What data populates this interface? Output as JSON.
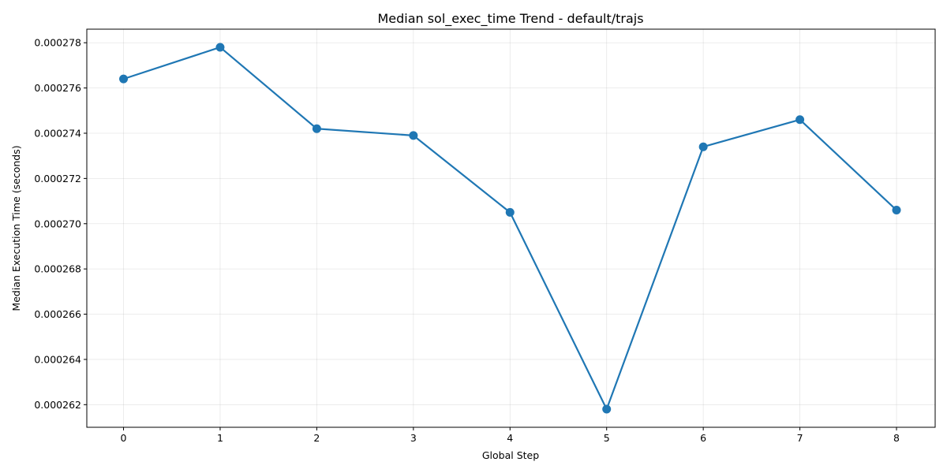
{
  "chart_data": {
    "type": "line",
    "title": "Median sol_exec_time Trend - default/trajs",
    "xlabel": "Global Step",
    "ylabel": "Median Execution Time (seconds)",
    "x": [
      0,
      1,
      2,
      3,
      4,
      5,
      6,
      7,
      8
    ],
    "series": [
      {
        "values": [
          0.0002764,
          0.0002778,
          0.0002742,
          0.0002739,
          0.0002705,
          0.0002618,
          0.0002734,
          0.0002746,
          0.0002706
        ],
        "color": "#1f77b4",
        "marker": "circle"
      }
    ],
    "xlim": [
      -0.38,
      8.4
    ],
    "ylim": [
      0.000261,
      0.0002786
    ],
    "xticks": [
      0,
      1,
      2,
      3,
      4,
      5,
      6,
      7,
      8
    ],
    "yticks": [
      0.000262,
      0.000264,
      0.000266,
      0.000268,
      0.00027,
      0.000272,
      0.000274,
      0.000276,
      0.000278
    ],
    "ytick_labels": [
      "0.000262",
      "0.000264",
      "0.000266",
      "0.000268",
      "0.000270",
      "0.000272",
      "0.000274",
      "0.000276",
      "0.000278"
    ],
    "grid": true,
    "legend": "none"
  }
}
